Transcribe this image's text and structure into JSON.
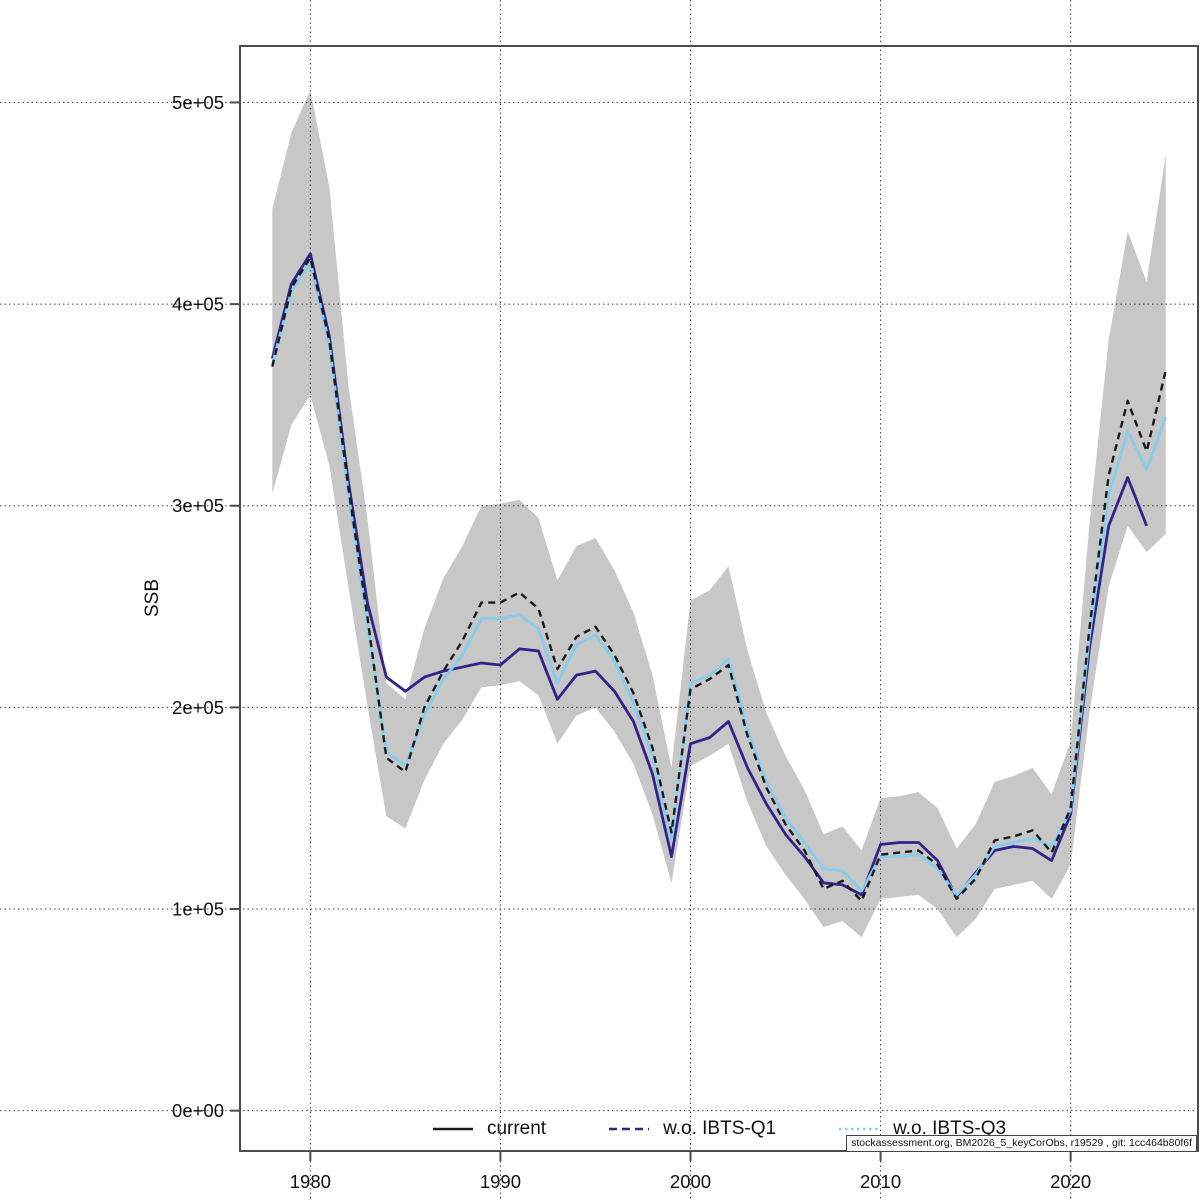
{
  "chart_data": {
    "type": "line",
    "title": "",
    "xlabel": "",
    "ylabel": "SSB",
    "grid": true,
    "legend_position": "bottom-center",
    "xlim": [
      1976.3,
      2026.7
    ],
    "ylim": [
      -20000,
      528000
    ],
    "x_ticks": [
      1980,
      1990,
      2000,
      2010,
      2020
    ],
    "x_tick_labels": [
      "1980",
      "1990",
      "2000",
      "2010",
      "2020"
    ],
    "y_ticks": [
      0,
      100000,
      200000,
      300000,
      400000,
      500000
    ],
    "y_tick_labels": [
      "0e+00",
      "1e+05",
      "2e+05",
      "3e+05",
      "4e+05",
      "5e+05"
    ],
    "axis_color": "#4d4d4d",
    "grid_color": "#3c3c3c",
    "years": [
      1978,
      1979,
      1980,
      1981,
      1982,
      1983,
      1984,
      1985,
      1986,
      1987,
      1988,
      1989,
      1990,
      1991,
      1992,
      1993,
      1994,
      1995,
      1996,
      1997,
      1998,
      1999,
      2000,
      2001,
      2002,
      2003,
      2004,
      2005,
      2006,
      2007,
      2008,
      2009,
      2010,
      2011,
      2012,
      2013,
      2014,
      2015,
      2016,
      2017,
      2018,
      2019,
      2020,
      2021,
      2022,
      2023,
      2024,
      2025
    ],
    "band": {
      "series": "current",
      "color": "#c7c7c7",
      "upper": [
        447000,
        485000,
        506000,
        458000,
        360000,
        294000,
        212000,
        204000,
        239000,
        264000,
        280000,
        300000,
        301000,
        303000,
        294000,
        263000,
        280000,
        284000,
        268000,
        247000,
        216000,
        170000,
        253000,
        258000,
        270000,
        228000,
        197000,
        176000,
        159000,
        137000,
        141000,
        129000,
        155000,
        156000,
        158000,
        150000,
        130000,
        142000,
        163000,
        166000,
        170000,
        157000,
        183000,
        292000,
        382000,
        436000,
        411000,
        474000
      ],
      "lower": [
        306000,
        340000,
        355000,
        320000,
        260000,
        201000,
        146000,
        140000,
        164000,
        182000,
        194000,
        210000,
        211000,
        213000,
        206000,
        182000,
        196000,
        200000,
        188000,
        172000,
        147000,
        113000,
        171000,
        176000,
        182000,
        153000,
        131000,
        117000,
        105000,
        91000,
        94000,
        86000,
        105000,
        106000,
        107000,
        100000,
        86000,
        95000,
        110000,
        112000,
        114000,
        105000,
        122000,
        198000,
        260000,
        290000,
        277000,
        286000
      ]
    },
    "series": [
      {
        "name": "current",
        "color": "#1a1a1a",
        "plot_dash": "7 5",
        "legend_dash": "solid",
        "line_width": 2.4,
        "values": [
          369000,
          408000,
          423000,
          382000,
          309000,
          245000,
          175000,
          168000,
          200000,
          218000,
          233000,
          252000,
          252000,
          257000,
          249000,
          219000,
          235000,
          240000,
          226000,
          207000,
          180000,
          138000,
          209000,
          214000,
          221000,
          186000,
          160000,
          142000,
          129000,
          110000,
          114000,
          104000,
          127000,
          128000,
          129000,
          122000,
          105000,
          115000,
          134000,
          136000,
          139000,
          128000,
          150000,
          240000,
          315000,
          352000,
          327000,
          367000
        ]
      },
      {
        "name": "w.o. IBTS-Q1",
        "color": "#332288",
        "plot_dash": "solid",
        "legend_dash": "dashed",
        "line_width": 2.8,
        "values": [
          373000,
          410000,
          425000,
          384000,
          312000,
          252000,
          215000,
          208000,
          215000,
          218000,
          220000,
          222000,
          221000,
          229000,
          228000,
          204000,
          216000,
          218000,
          208000,
          193000,
          167000,
          126000,
          182000,
          185000,
          193000,
          170000,
          152000,
          137000,
          126000,
          113000,
          112000,
          107000,
          132000,
          133000,
          133000,
          124000,
          106000,
          118000,
          129000,
          131000,
          130000,
          124000,
          147000,
          230000,
          290000,
          314000,
          290000
        ]
      },
      {
        "name": "w.o. IBTS-Q3",
        "color": "#88CCEE",
        "plot_dash": "solid",
        "legend_dash": "dotted",
        "line_width": 2.8,
        "values": [
          370000,
          406000,
          421000,
          380000,
          306000,
          242000,
          178000,
          171000,
          196000,
          214000,
          226000,
          244000,
          244000,
          246000,
          239000,
          212000,
          231000,
          236000,
          223000,
          202000,
          176000,
          134000,
          212000,
          216000,
          224000,
          189000,
          163000,
          145000,
          133000,
          120000,
          119000,
          109000,
          126000,
          126000,
          127000,
          120000,
          107000,
          117000,
          131000,
          133000,
          135000,
          131000,
          149000,
          236000,
          305000,
          337000,
          318000,
          344000
        ]
      }
    ],
    "watermark": "stockassessment.org, BM2026_5_keyCorObs, r19529 , git: 1cc464b80f6f"
  }
}
